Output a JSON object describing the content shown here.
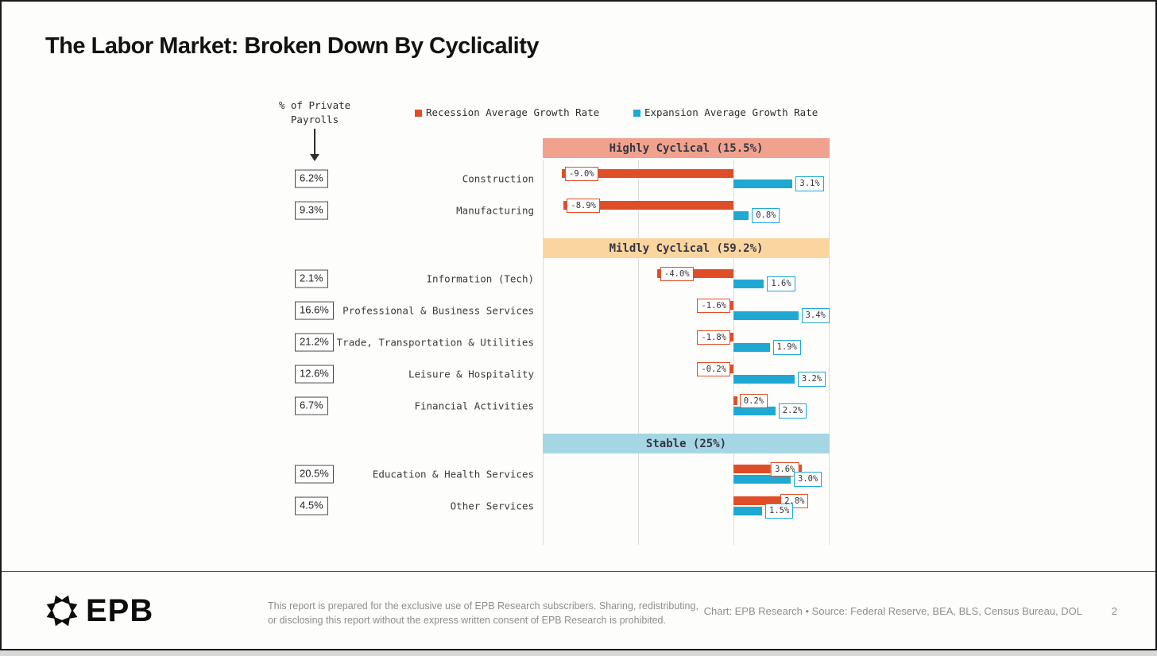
{
  "title": "The Labor Market: Broken Down By Cyclicality",
  "payroll_note": "% of Private\nPayrolls",
  "chart_data": {
    "type": "bar",
    "orientation": "horizontal",
    "xlim": [
      -10,
      5
    ],
    "gridline_step_pct": 5,
    "grid": "vertical-lines",
    "legend_position": "top",
    "legend": [
      {
        "name": "Recession Average Growth Rate",
        "color": "#df4e28"
      },
      {
        "name": "Expansion Average Growth Rate",
        "color": "#1fa9d2"
      }
    ],
    "sections": [
      {
        "label": "Highly Cyclical (15.5%)",
        "band_color": "#f0a28e",
        "rows": [
          {
            "sector": "Construction",
            "payroll_share": "6.2%",
            "recession": -9.0,
            "expansion": 3.1,
            "recession_label": "-9.0%",
            "expansion_label": "3.1%"
          },
          {
            "sector": "Manufacturing",
            "payroll_share": "9.3%",
            "recession": -8.9,
            "expansion": 0.8,
            "recession_label": "-8.9%",
            "expansion_label": "0.8%"
          }
        ]
      },
      {
        "label": "Mildly Cyclical (59.2%)",
        "band_color": "#fbd5a0",
        "rows": [
          {
            "sector": "Information (Tech)",
            "payroll_share": "2.1%",
            "recession": -4.0,
            "expansion": 1.6,
            "recession_label": "-4.0%",
            "expansion_label": "1.6%"
          },
          {
            "sector": "Professional & Business Services",
            "payroll_share": "16.6%",
            "recession": -1.6,
            "expansion": 3.4,
            "recession_label": "-1.6%",
            "expansion_label": "3.4%"
          },
          {
            "sector": "Trade, Transportation & Utilities",
            "payroll_share": "21.2%",
            "recession": -1.8,
            "expansion": 1.9,
            "recession_label": "-1.8%",
            "expansion_label": "1.9%"
          },
          {
            "sector": "Leisure & Hospitality",
            "payroll_share": "12.6%",
            "recession": -0.2,
            "expansion": 3.2,
            "recession_label": "-0.2%",
            "expansion_label": "3.2%"
          },
          {
            "sector": "Financial Activities",
            "payroll_share": "6.7%",
            "recession": 0.2,
            "expansion": 2.2,
            "recession_label": "0.2%",
            "expansion_label": "2.2%"
          }
        ]
      },
      {
        "label": "Stable (25%)",
        "band_color": "#a5d6e4",
        "rows": [
          {
            "sector": "Education & Health Services",
            "payroll_share": "20.5%",
            "recession": 3.6,
            "expansion": 3.0,
            "recession_label": "3.6%",
            "expansion_label": "3.0%"
          },
          {
            "sector": "Other Services",
            "payroll_share": "4.5%",
            "recession": 2.8,
            "expansion": 1.5,
            "recession_label": "2.8%",
            "expansion_label": "1.5%"
          }
        ]
      }
    ]
  },
  "footer": {
    "logo_text": "EPB",
    "disclaimer_line1": "This report is prepared for the exclusive use of EPB Research subscribers. Sharing, redistributing,",
    "disclaimer_line2": "or disclosing this report without the express written consent of EPB Research is prohibited.",
    "credit": "Chart: EPB Research  •  Source: Federal Reserve, BEA, BLS, Census Bureau, DOL",
    "page_number": "2"
  }
}
